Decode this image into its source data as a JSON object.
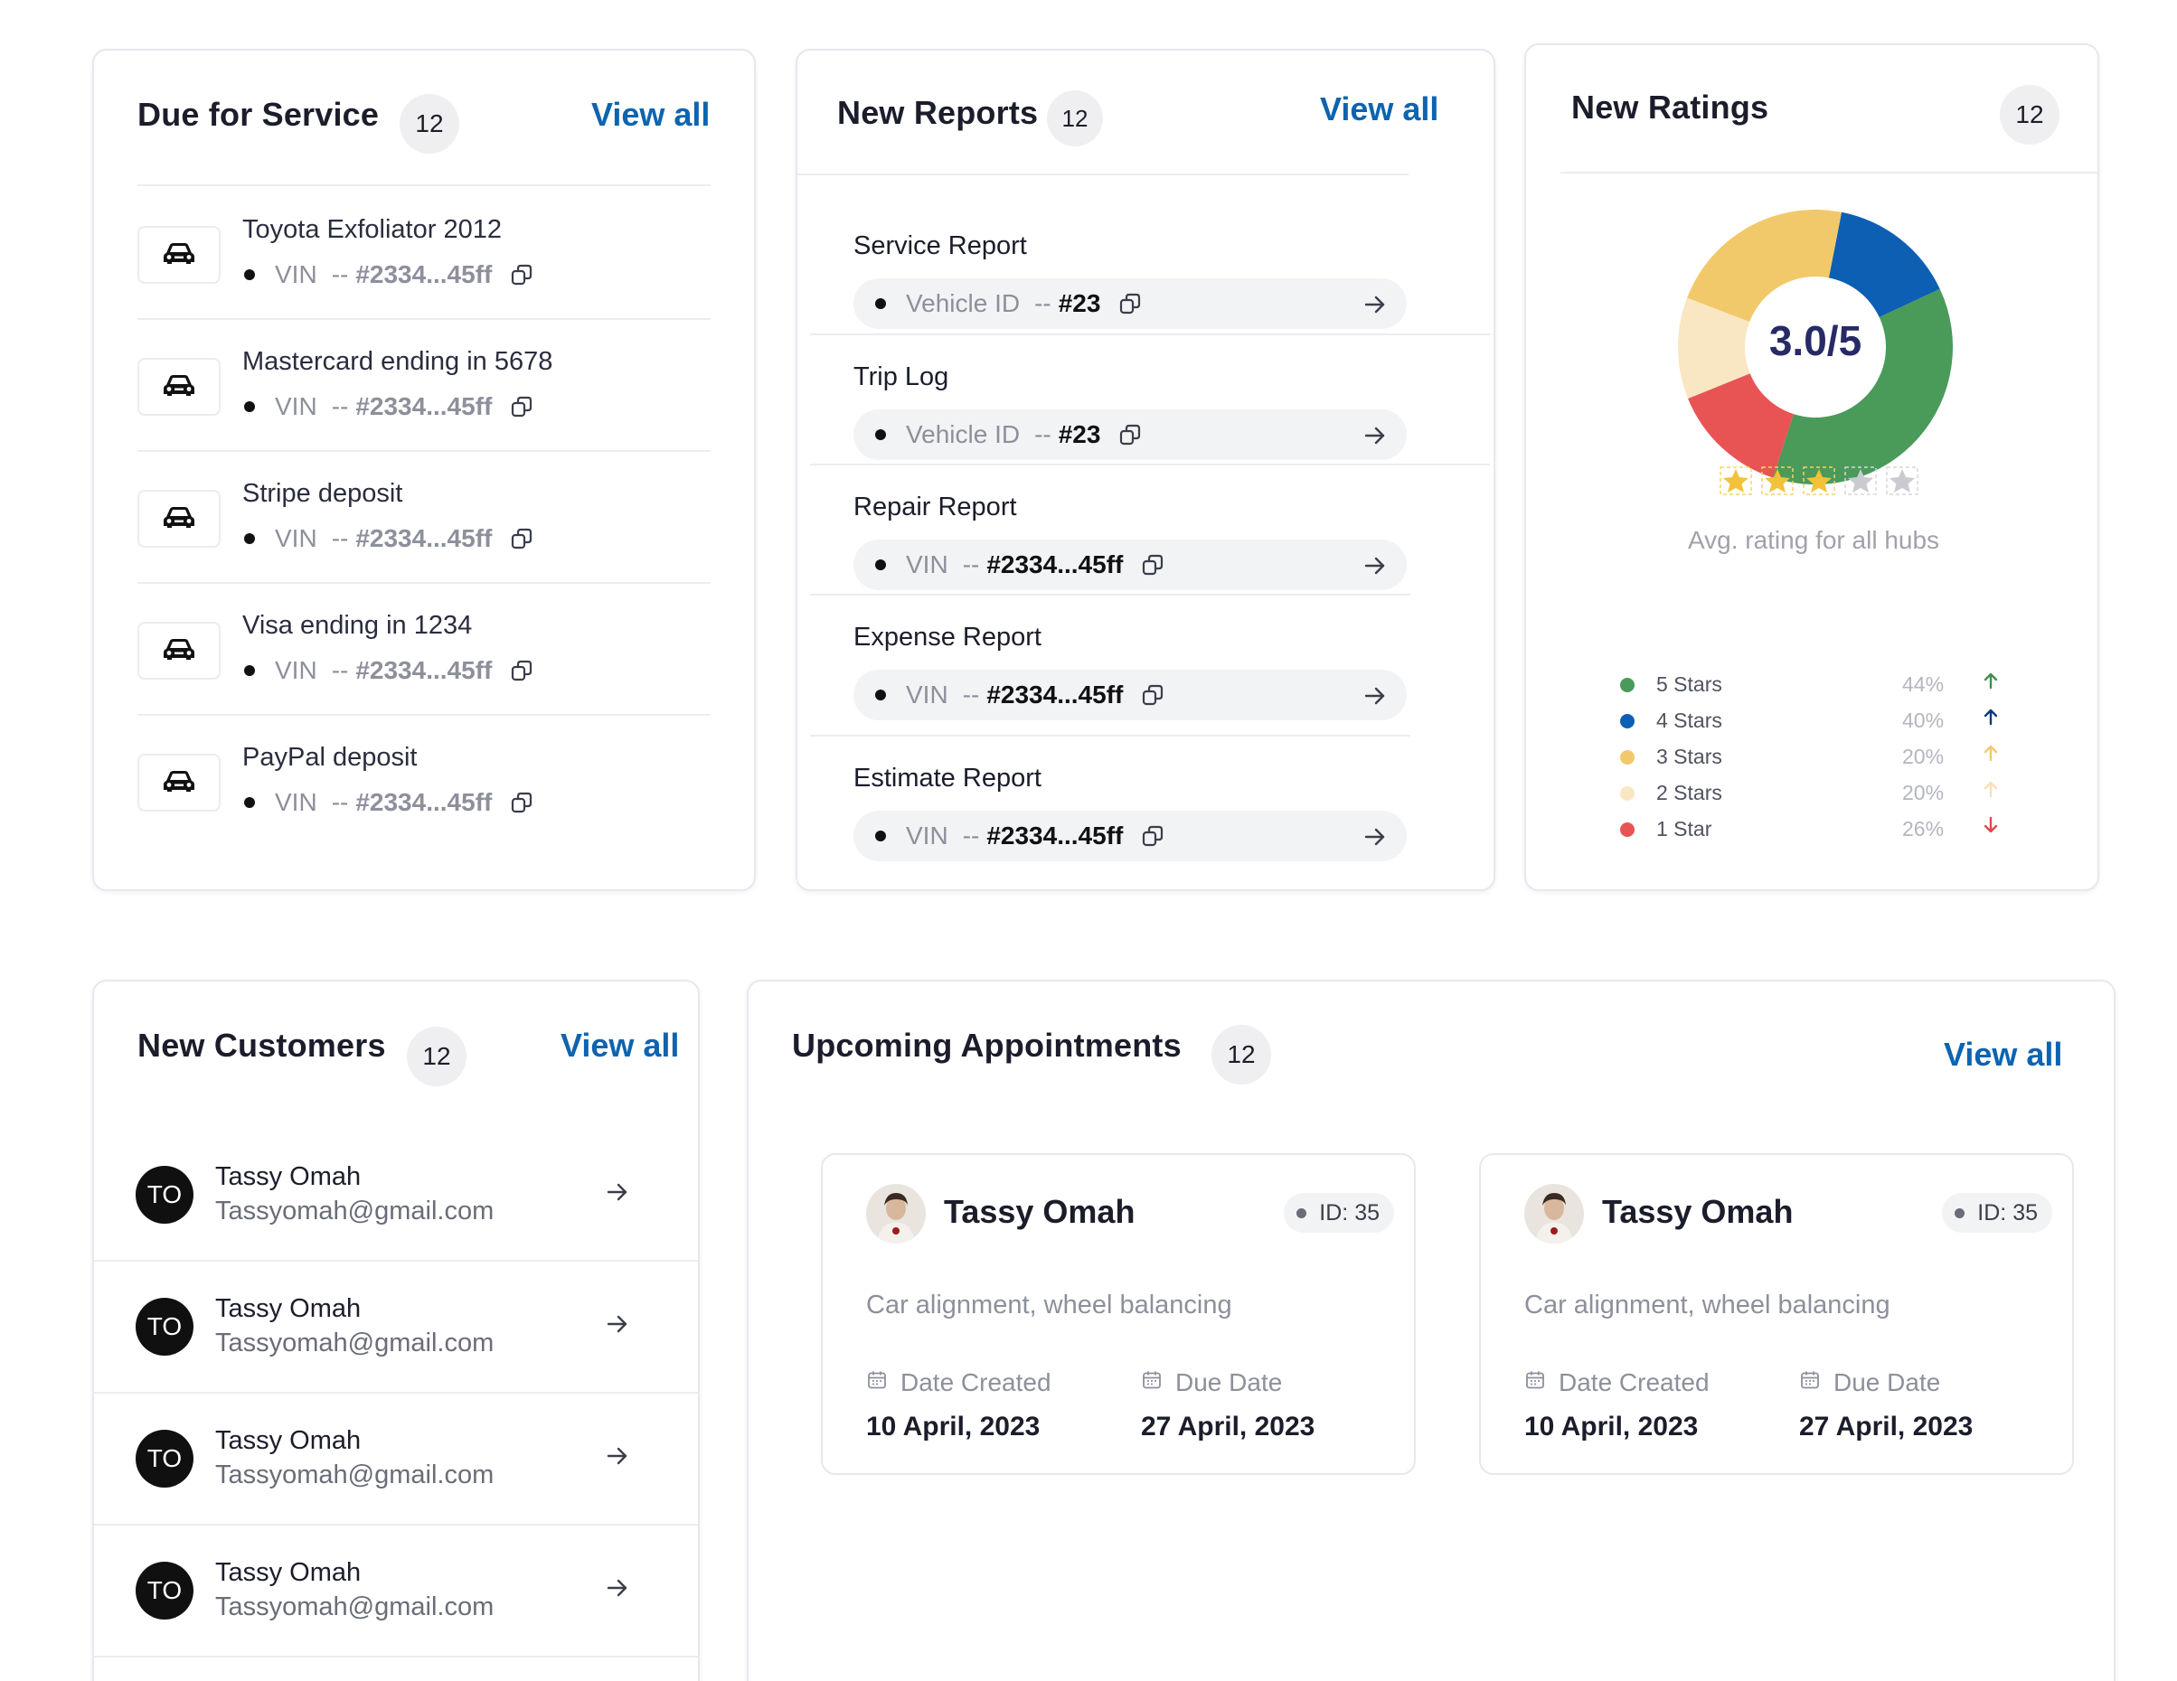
{
  "due_service": {
    "title": "Due for Service",
    "count": "12",
    "view_all": "View all",
    "items": [
      {
        "name": "Toyota Exfoliator 2012",
        "key": "VIN",
        "sep": "--",
        "value": "#2334...45ff"
      },
      {
        "name": "Mastercard ending in 5678",
        "key": "VIN",
        "sep": "--",
        "value": "#2334...45ff"
      },
      {
        "name": "Stripe deposit",
        "key": "VIN",
        "sep": "--",
        "value": "#2334...45ff"
      },
      {
        "name": "Visa ending in 1234",
        "key": "VIN",
        "sep": "--",
        "value": "#2334...45ff"
      },
      {
        "name": "PayPal deposit",
        "key": "VIN",
        "sep": "--",
        "value": "#2334...45ff"
      }
    ]
  },
  "new_reports": {
    "title": "New Reports",
    "count": "12",
    "view_all": "View all",
    "items": [
      {
        "name": "Service Report",
        "key": "Vehicle ID",
        "sep": "--",
        "value": "#23"
      },
      {
        "name": "Trip Log",
        "key": "Vehicle ID",
        "sep": "--",
        "value": "#23"
      },
      {
        "name": "Repair Report",
        "key": "VIN",
        "sep": "--",
        "value": "#2334...45ff"
      },
      {
        "name": "Expense Report",
        "key": "VIN",
        "sep": "--",
        "value": "#2334...45ff"
      },
      {
        "name": "Estimate Report",
        "key": "VIN",
        "sep": "--",
        "value": "#2334...45ff"
      }
    ]
  },
  "new_ratings": {
    "title": "New Ratings",
    "count": "12",
    "score": "3.0/5",
    "stars_filled": 3,
    "stars_total": 5,
    "caption": "Avg. rating for all hubs",
    "legend": [
      {
        "label": "5 Stars",
        "pct": "44%",
        "color": "#4a9a5a",
        "arrow": "up",
        "arrow_color": "#3f8f4f"
      },
      {
        "label": "4 Stars",
        "pct": "40%",
        "color": "#0d5fb3",
        "arrow": "up",
        "arrow_color": "#0b3c7a"
      },
      {
        "label": "3 Stars",
        "pct": "20%",
        "color": "#f2c96a",
        "arrow": "up",
        "arrow_color": "#f2c96a"
      },
      {
        "label": "2 Stars",
        "pct": "20%",
        "color": "#f9e7c3",
        "arrow": "up",
        "arrow_color": "#f9e0b4"
      },
      {
        "label": "1 Star",
        "pct": "26%",
        "color": "#e85454",
        "arrow": "down",
        "arrow_color": "#e04848"
      }
    ]
  },
  "new_customers": {
    "title": "New Customers",
    "count": "12",
    "view_all": "View all",
    "items": [
      {
        "initials": "TO",
        "name": "Tassy Omah",
        "email": "Tassyomah@gmail.com"
      },
      {
        "initials": "TO",
        "name": "Tassy Omah",
        "email": "Tassyomah@gmail.com"
      },
      {
        "initials": "TO",
        "name": "Tassy Omah",
        "email": "Tassyomah@gmail.com"
      },
      {
        "initials": "TO",
        "name": "Tassy Omah",
        "email": "Tassyomah@gmail.com"
      }
    ]
  },
  "appointments": {
    "title": "Upcoming Appointments",
    "count": "12",
    "view_all": "View all",
    "items": [
      {
        "name": "Tassy Omah",
        "id": "ID: 35",
        "desc": "Car alignment, wheel balancing",
        "created_label": "Date Created",
        "created": "10 April, 2023",
        "due_label": "Due Date",
        "due": "27 April, 2023"
      },
      {
        "name": "Tassy Omah",
        "id": "ID: 35",
        "desc": "Car alignment, wheel balancing",
        "created_label": "Date Created",
        "created": "10 April, 2023",
        "due_label": "Due Date",
        "due": "27 April, 2023"
      }
    ]
  }
}
